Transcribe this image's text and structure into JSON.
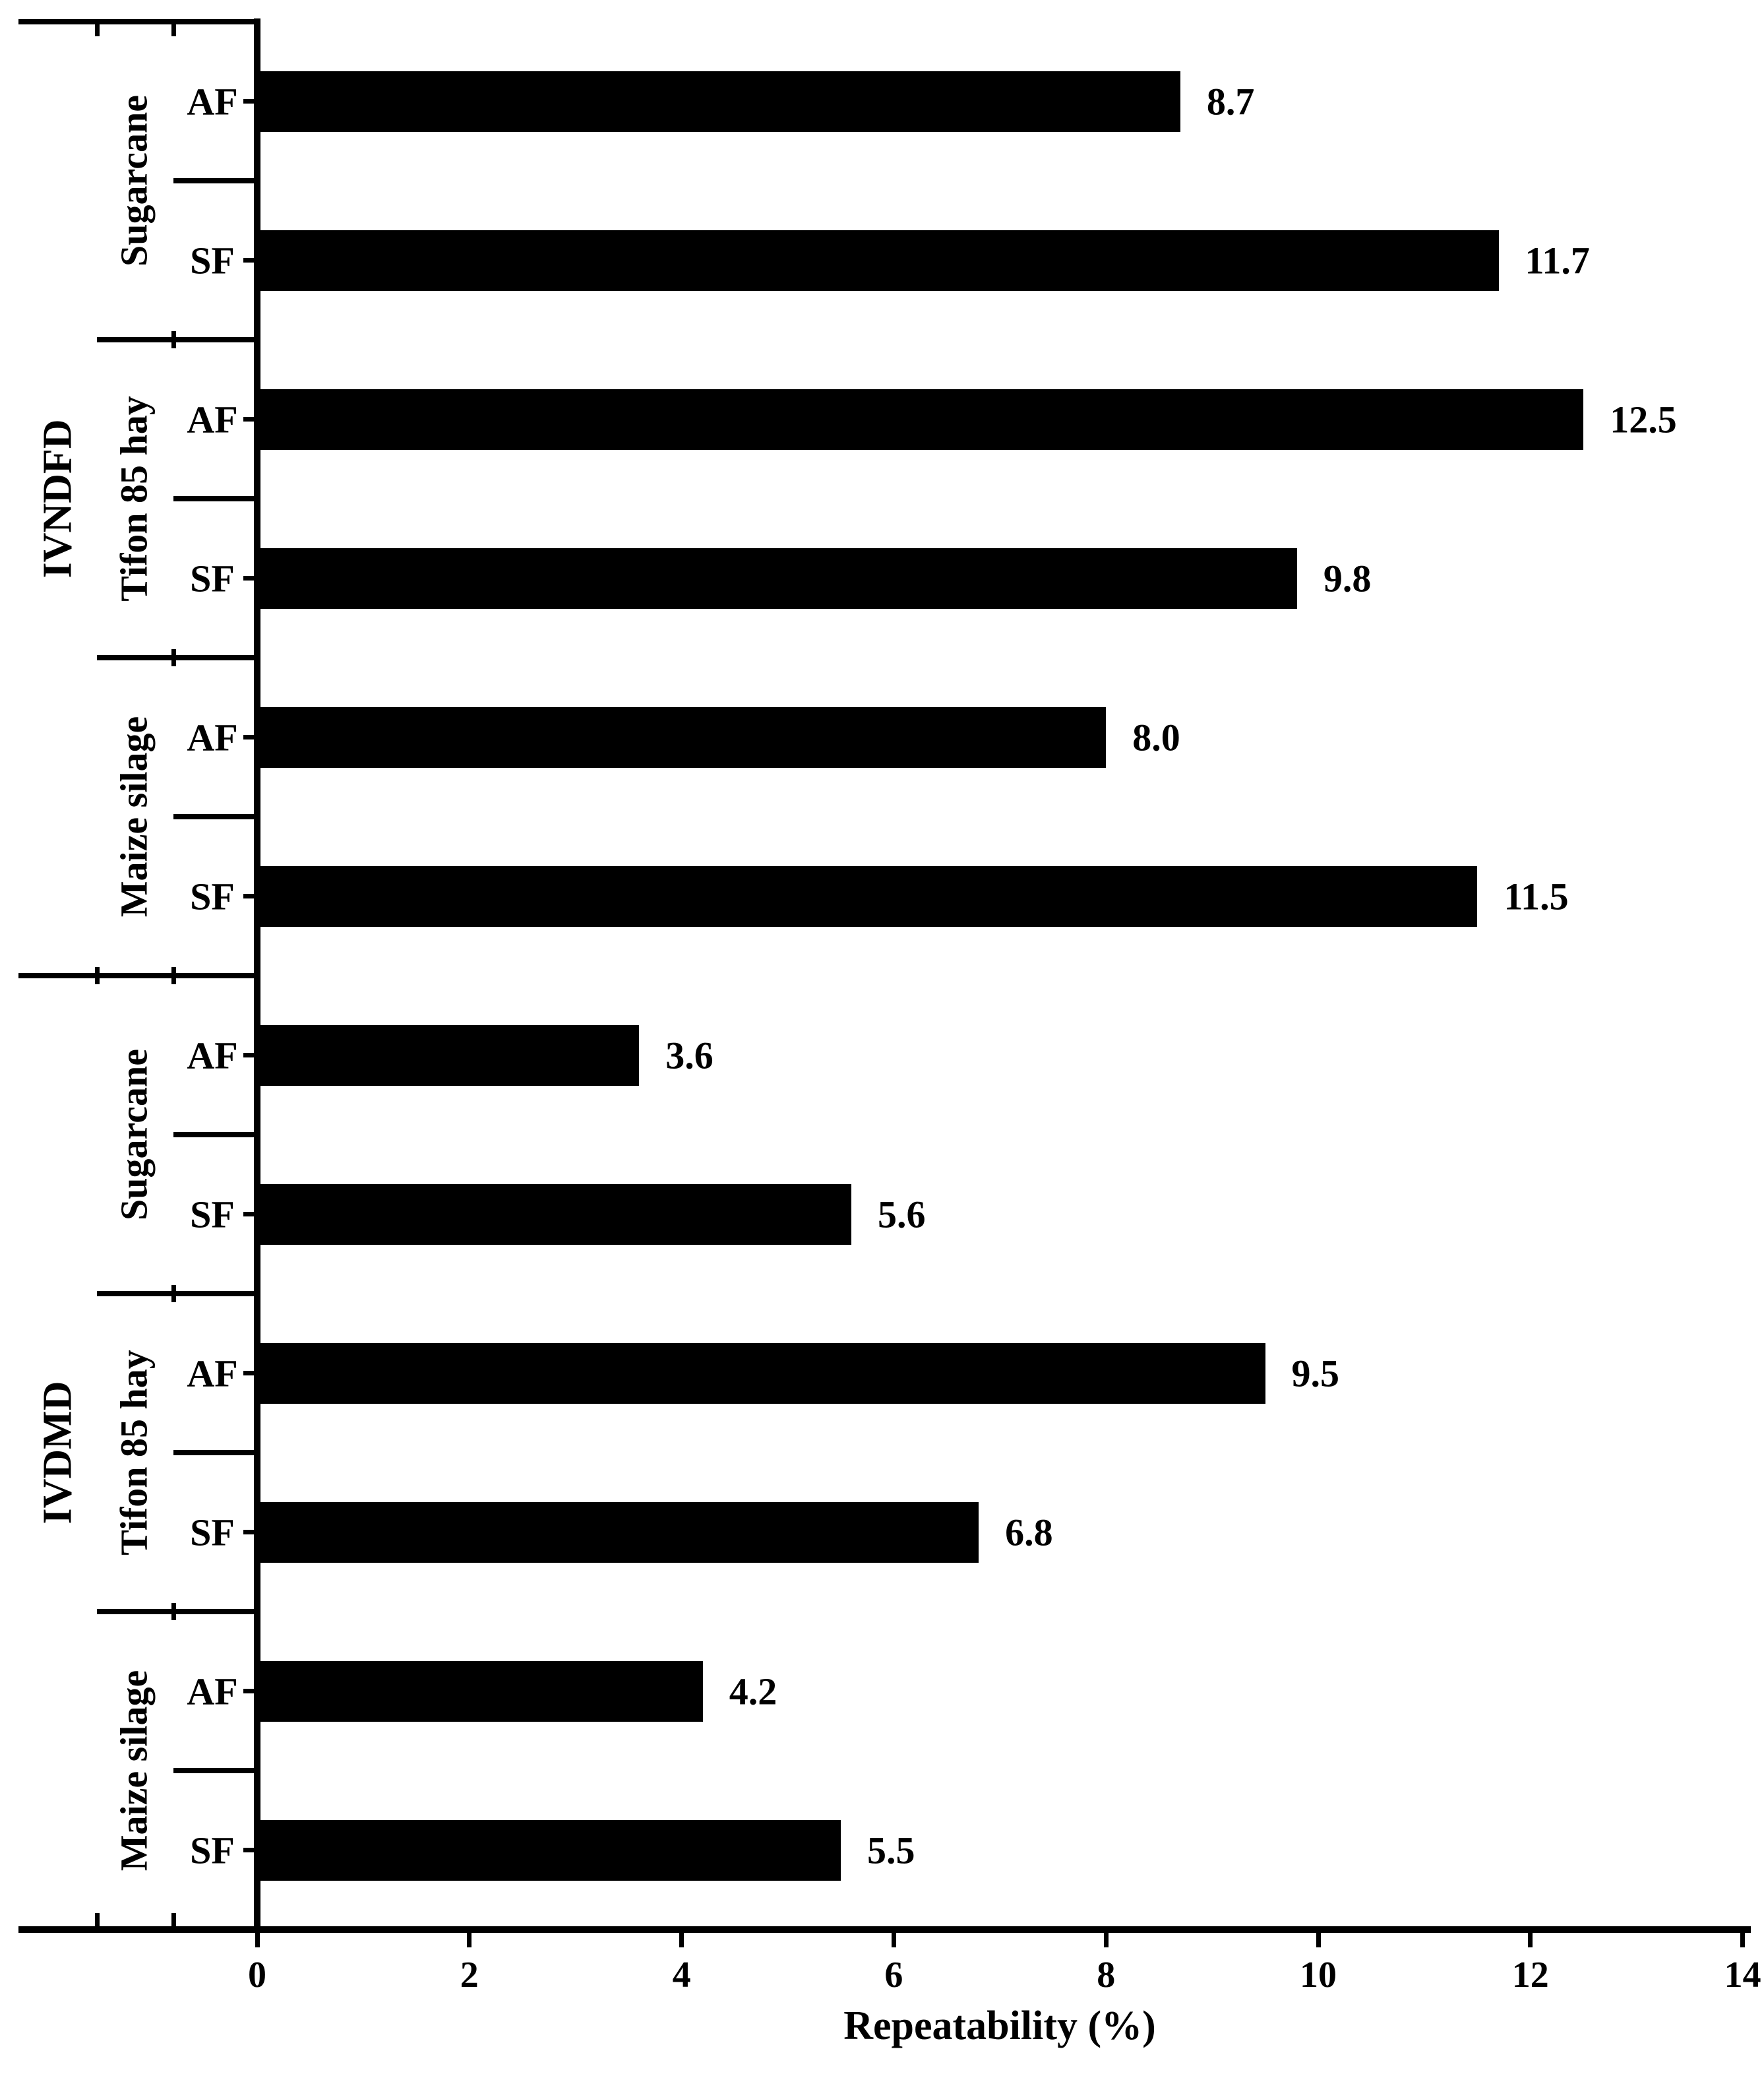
{
  "page": {
    "background": "#ffffff",
    "text_color": "#000000"
  },
  "chart_data": {
    "type": "bar",
    "orientation": "horizontal",
    "xlabel": "Repeatability (%)",
    "xlim": [
      0,
      14
    ],
    "x_ticks": [
      "0",
      "2",
      "4",
      "6",
      "8",
      "10",
      "12",
      "14"
    ],
    "grid": false,
    "legend": "none",
    "bar_color": "#000000",
    "axis_color": "#000000",
    "groups": [
      {
        "label": "IVNDFD",
        "feeds": [
          {
            "label": "Sugarcane",
            "bars": [
              {
                "label": "AF",
                "value": 8.7,
                "value_text": "8.7"
              },
              {
                "label": "SF",
                "value": 11.7,
                "value_text": "11.7"
              }
            ]
          },
          {
            "label": "Tifon 85 hay",
            "bars": [
              {
                "label": "AF",
                "value": 12.5,
                "value_text": "12.5"
              },
              {
                "label": "SF",
                "value": 9.8,
                "value_text": "9.8"
              }
            ]
          },
          {
            "label": "Maize silage",
            "bars": [
              {
                "label": "AF",
                "value": 8.0,
                "value_text": "8.0"
              },
              {
                "label": "SF",
                "value": 11.5,
                "value_text": "11.5"
              }
            ]
          }
        ]
      },
      {
        "label": "IVDMD",
        "feeds": [
          {
            "label": "Sugarcane",
            "bars": [
              {
                "label": "AF",
                "value": 3.6,
                "value_text": "3.6"
              },
              {
                "label": "SF",
                "value": 5.6,
                "value_text": "5.6"
              }
            ]
          },
          {
            "label": "Tifon 85 hay",
            "bars": [
              {
                "label": "AF",
                "value": 9.5,
                "value_text": "9.5"
              },
              {
                "label": "SF",
                "value": 6.8,
                "value_text": "6.8"
              }
            ]
          },
          {
            "label": "Maize silage",
            "bars": [
              {
                "label": "AF",
                "value": 4.2,
                "value_text": "4.2"
              },
              {
                "label": "SF",
                "value": 5.5,
                "value_text": "5.5"
              }
            ]
          }
        ]
      }
    ]
  }
}
